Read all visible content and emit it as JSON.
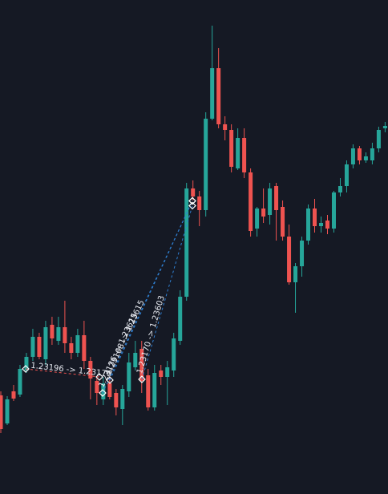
{
  "chart_data": {
    "type": "candlestick",
    "background": "#151924",
    "up_color": "#26a69a",
    "down_color": "#ef5350",
    "ylim": [
      1.22884,
      1.24116
    ],
    "categories": [
      null,
      null,
      null,
      null,
      null,
      null,
      null,
      null,
      null,
      null,
      null,
      null,
      null,
      null,
      null,
      null,
      null,
      null,
      null,
      null,
      null,
      null,
      null,
      null,
      null,
      null,
      null,
      null,
      null,
      null,
      null,
      null,
      null,
      null,
      null,
      null,
      null,
      null,
      null,
      null,
      null,
      null,
      null,
      null,
      null,
      null,
      null,
      null,
      null,
      null,
      null,
      null,
      null,
      null,
      null,
      null,
      null,
      null,
      null,
      null,
      null
    ],
    "open": [
      1.2313,
      1.2306,
      1.2314,
      1.23132,
      1.23192,
      1.23226,
      1.23276,
      1.2322,
      1.23306,
      1.23266,
      1.233,
      1.2326,
      1.23236,
      1.2328,
      1.23216,
      1.23166,
      1.2312,
      1.2316,
      1.23136,
      1.23096,
      1.2314,
      1.232,
      1.23246,
      1.2318,
      1.231,
      1.23192,
      1.23176,
      1.23192,
      1.23266,
      1.23376,
      1.23646,
      1.23626,
      1.23592,
      1.2382,
      1.23946,
      1.23806,
      1.23792,
      1.23696,
      1.23772,
      1.23686,
      1.23546,
      1.23596,
      1.2358,
      1.23652,
      1.236,
      1.23526,
      1.23412,
      1.23452,
      1.23516,
      1.23596,
      1.23552,
      1.23566,
      1.23546,
      1.23636,
      1.23652,
      1.23706,
      1.23746,
      1.23716,
      1.23716,
      1.23746,
      1.23796
    ],
    "high": [
      1.2314,
      1.23128,
      1.23156,
      1.23206,
      1.23236,
      1.23296,
      1.23286,
      1.23316,
      1.23326,
      1.23326,
      1.23366,
      1.23276,
      1.23296,
      1.23316,
      1.23226,
      1.23176,
      1.23176,
      1.23176,
      1.23146,
      1.23156,
      1.23236,
      1.23266,
      1.23266,
      1.23196,
      1.23206,
      1.23206,
      1.23216,
      1.23286,
      1.23392,
      1.2366,
      1.23666,
      1.2364,
      1.23836,
      1.24052,
      1.23996,
      1.23826,
      1.23806,
      1.23796,
      1.23796,
      1.23696,
      1.236,
      1.23646,
      1.2366,
      1.2366,
      1.23616,
      1.23556,
      1.2346,
      1.23526,
      1.23606,
      1.2362,
      1.23576,
      1.2358,
      1.2364,
      1.23672,
      1.23716,
      1.23756,
      1.23752,
      1.23736,
      1.2376,
      1.238,
      1.23812
    ],
    "low": [
      1.23036,
      1.23056,
      1.23116,
      1.23126,
      1.23186,
      1.23216,
      1.2322,
      1.23206,
      1.23256,
      1.23256,
      1.23236,
      1.2322,
      1.23226,
      1.23196,
      1.2312,
      1.23106,
      1.23106,
      1.2312,
      1.2308,
      1.23056,
      1.23126,
      1.23192,
      1.23136,
      1.23092,
      1.23092,
      1.23156,
      1.23106,
      1.23176,
      1.23256,
      1.23366,
      1.23616,
      1.23552,
      1.23576,
      1.23816,
      1.23796,
      1.23766,
      1.23686,
      1.23692,
      1.23672,
      1.23526,
      1.23526,
      1.2356,
      1.23556,
      1.23516,
      1.23516,
      1.23406,
      1.23336,
      1.23426,
      1.23506,
      1.23536,
      1.23536,
      1.23532,
      1.23536,
      1.23626,
      1.23636,
      1.23696,
      1.23706,
      1.2371,
      1.23706,
      1.23736,
      1.23786
    ],
    "close": [
      1.23046,
      1.2312,
      1.23122,
      1.23196,
      1.23226,
      1.23276,
      1.23226,
      1.233,
      1.23272,
      1.233,
      1.2326,
      1.23236,
      1.2328,
      1.23216,
      1.23172,
      1.23136,
      1.2316,
      1.23126,
      1.231,
      1.23146,
      1.23212,
      1.23236,
      1.23166,
      1.231,
      1.23186,
      1.23176,
      1.232,
      1.23272,
      1.23376,
      1.23646,
      1.23626,
      1.23592,
      1.2382,
      1.23946,
      1.23806,
      1.23792,
      1.237,
      1.23772,
      1.23686,
      1.2354,
      1.23596,
      1.23576,
      1.23646,
      1.23592,
      1.23526,
      1.23412,
      1.23452,
      1.23516,
      1.23596,
      1.23552,
      1.2356,
      1.23546,
      1.23636,
      1.23652,
      1.23706,
      1.23746,
      1.23716,
      1.23726,
      1.23746,
      1.23792,
      1.23802
    ],
    "annotations": [
      {
        "label": "1.23196 -> 1.23176",
        "from": 1.23196,
        "to": 1.23176,
        "color": "#ef5350"
      },
      {
        "label": "1.23136 -> 1.23615",
        "from": 1.23136,
        "to": 1.23615,
        "color": "#2f7fd1"
      },
      {
        "label": "1.23168 -> 1.23615",
        "from": 1.23168,
        "to": 1.23615,
        "color": "#2f7fd1"
      },
      {
        "label": "1.23170 -> 1.23603",
        "from": 1.2317,
        "to": 1.23603,
        "color": "#2f7fd1"
      }
    ]
  }
}
